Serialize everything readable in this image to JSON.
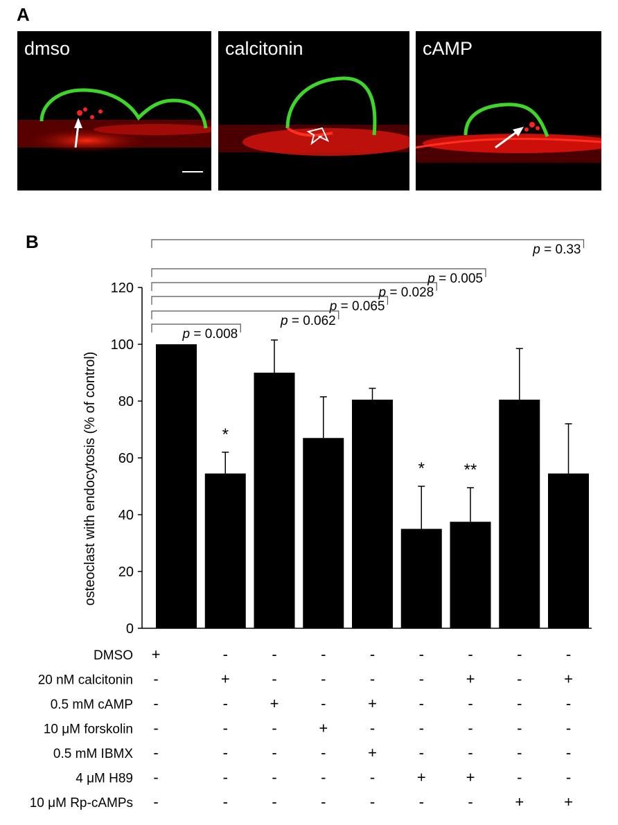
{
  "panel_labels": {
    "a": "A",
    "b": "B"
  },
  "micrographs": [
    {
      "label": "dmso",
      "arrow": "solid-arrow"
    },
    {
      "label": "calcitonin",
      "arrow": "open-arrow"
    },
    {
      "label": "cAMP",
      "arrow": "solid-arrow"
    }
  ],
  "colors": {
    "membrane": "#2ecc1a",
    "bone": "#e3120b",
    "bar": "#000000"
  },
  "chart_data": {
    "type": "bar",
    "ylabel": "osteoclast with endocytosis (% of control)",
    "ylim": [
      0,
      120
    ],
    "yticks": [
      "0",
      "20",
      "40",
      "60",
      "80",
      "100",
      "120"
    ],
    "values": [
      100,
      54.5,
      90,
      67,
      80.5,
      35,
      37.5,
      80.5,
      54.5
    ],
    "error_bars": [
      0,
      7.5,
      11.5,
      14.5,
      4,
      15,
      12,
      18,
      17.5
    ],
    "significance": [
      "",
      "*",
      "",
      "",
      "",
      "*",
      "**",
      "",
      ""
    ],
    "comparisons": [
      {
        "text": "p = 0.008",
        "target": 1
      },
      {
        "text": "p = 0.062",
        "target": 3
      },
      {
        "text": "p = 0.065",
        "target": 4
      },
      {
        "text": "p = 0.028",
        "target": 5
      },
      {
        "text": "p = 0.005",
        "target": 6
      },
      {
        "text": "p = 0.33",
        "target": 8
      }
    ],
    "treatments": [
      {
        "name": "DMSO",
        "signs": [
          "+",
          "-",
          "-",
          "-",
          "-",
          "-",
          "-",
          "-",
          "-"
        ]
      },
      {
        "name": "20 nM calcitonin",
        "signs": [
          "-",
          "+",
          "-",
          "-",
          "-",
          "-",
          "+",
          "-",
          "+"
        ]
      },
      {
        "name": "0.5 mM cAMP",
        "signs": [
          "-",
          "-",
          "+",
          "-",
          "+",
          "-",
          "-",
          "-",
          "-"
        ]
      },
      {
        "name": "10 μM forskolin",
        "signs": [
          "-",
          "-",
          "-",
          "+",
          "-",
          "-",
          "-",
          "-",
          "-"
        ]
      },
      {
        "name": "0.5 mM IBMX",
        "signs": [
          "-",
          "-",
          "-",
          "-",
          "+",
          "-",
          "-",
          "-",
          "-"
        ]
      },
      {
        "name": "4 μM H89",
        "signs": [
          "-",
          "-",
          "-",
          "-",
          "-",
          "+",
          "+",
          "-",
          "-"
        ]
      },
      {
        "name": "10 μM Rp-cAMPs",
        "signs": [
          "-",
          "-",
          "-",
          "-",
          "-",
          "-",
          "-",
          "+",
          "+"
        ]
      }
    ]
  }
}
